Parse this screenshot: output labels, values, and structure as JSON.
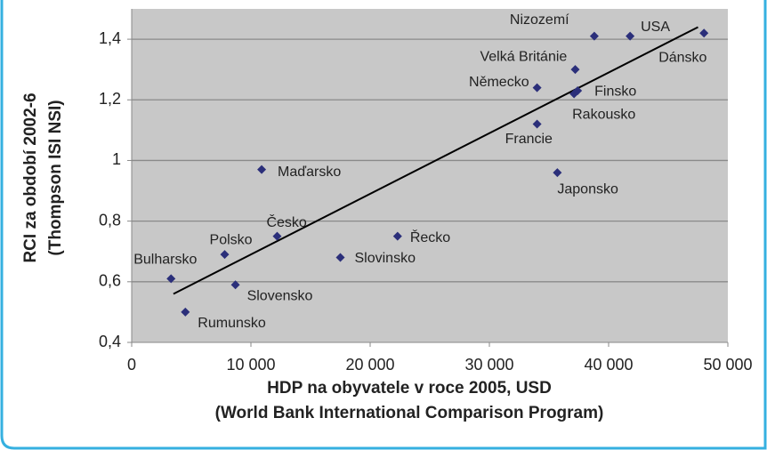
{
  "chart_data": {
    "type": "scatter",
    "x_label": [
      "HDP na obyvatele v roce 2005, USD",
      "(World Bank International Comparison Program)"
    ],
    "y_label": [
      "RCI za období 2002-6",
      "(Thompson ISI NSI)"
    ],
    "labels": [
      "Bulharsko",
      "Rumunsko",
      "Slovensko",
      "Polsko",
      "Česko",
      "Maďarsko",
      "Slovinsko",
      "Řecko",
      "Japonsko",
      "Francie",
      "Německo",
      "Rakousko",
      "Finsko",
      "Velká Británie",
      "Nizozemí",
      "USA",
      "Dánsko"
    ],
    "x": [
      3300,
      4500,
      8700,
      7800,
      12200,
      10900,
      17500,
      22300,
      35700,
      34000,
      34000,
      37100,
      37400,
      37200,
      38800,
      41800,
      48000
    ],
    "y": [
      0.61,
      0.5,
      0.59,
      0.69,
      0.75,
      0.97,
      0.68,
      0.75,
      0.96,
      1.12,
      1.24,
      1.22,
      1.23,
      1.3,
      1.41,
      1.41,
      1.42
    ],
    "color": "#2b2f7a",
    "trendline": {
      "x": [
        3500,
        47500
      ],
      "y": [
        0.56,
        1.44
      ],
      "color": "#000000"
    },
    "xlim": [
      0,
      50000
    ],
    "ylim": [
      0.4,
      1.5
    ],
    "xticks": [
      0,
      {
        "value": 10000,
        "label": "10 000"
      },
      {
        "value": 20000,
        "label": "20 000"
      },
      {
        "value": 30000,
        "label": "30 000"
      },
      {
        "value": 40000,
        "label": "40 000"
      },
      {
        "value": 50000,
        "label": "50 000"
      }
    ],
    "yticks": [
      {
        "value": 0.4,
        "label": "0,4"
      },
      {
        "value": 0.6,
        "label": "0,6"
      },
      {
        "value": 0.8,
        "label": "0,8"
      },
      1,
      {
        "value": 1.2,
        "label": "1,2"
      },
      {
        "value": 1.4,
        "label": "1,4"
      }
    ],
    "grid": true
  }
}
